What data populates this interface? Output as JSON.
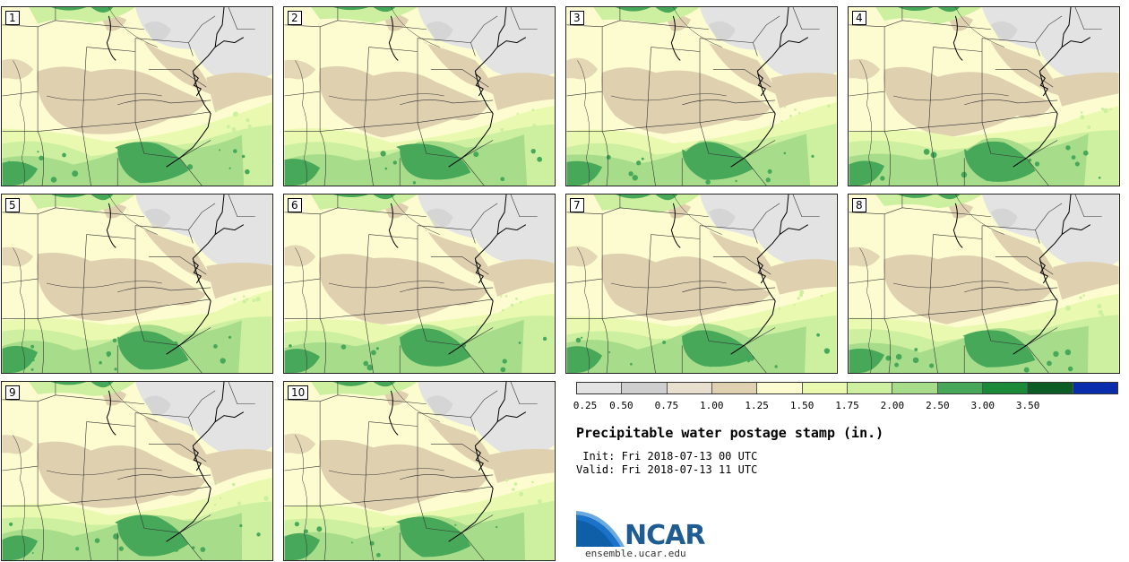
{
  "figure": {
    "title": "Precipitable water postage stamp (in.)",
    "init": " Init: Fri 2018-07-13 00 UTC",
    "valid": "Valid: Fri 2018-07-13 11 UTC",
    "logo_text": "NCAR",
    "website": "ensemble.ucar.edu"
  },
  "members": [
    "1",
    "2",
    "3",
    "4",
    "5",
    "6",
    "7",
    "8",
    "9",
    "10"
  ],
  "colorbar": {
    "ticks": [
      "0.25",
      "0.50",
      "0.75",
      "1.00",
      "1.25",
      "1.50",
      "1.75",
      "2.00",
      "2.50",
      "3.00",
      "3.50"
    ],
    "colors": [
      "#e3e3e3",
      "#cfcfcf",
      "#e8dfcf",
      "#dfd0b0",
      "#fdfcd0",
      "#eaf9b0",
      "#cdefa0",
      "#a7dc8a",
      "#47a85a",
      "#1b8a38",
      "#0c5c26",
      "#0a2dac"
    ]
  },
  "colors": {
    "map_background": "#fdfcd0",
    "state_lines": "#333333",
    "coast_lines": "#000000",
    "ncar_blue": "#1f5c93"
  }
}
